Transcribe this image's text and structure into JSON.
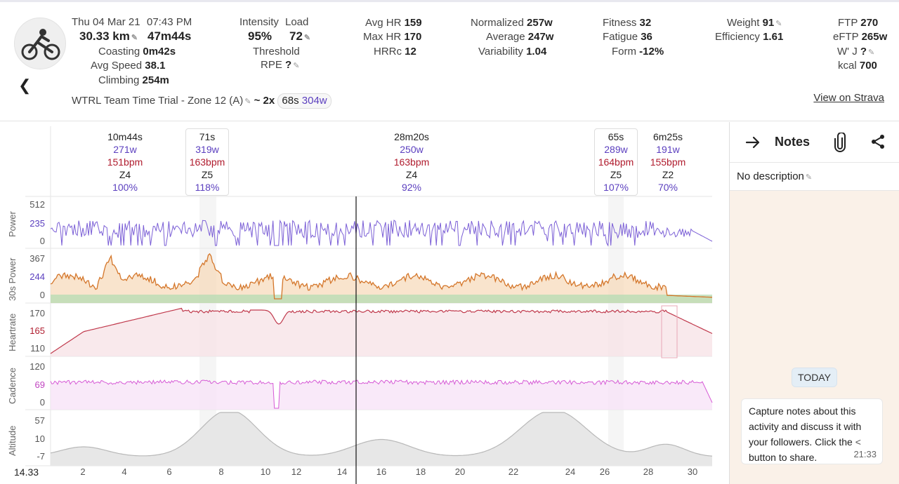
{
  "header": {
    "date": "Thu 04 Mar 21",
    "time": "07:43 PM",
    "distance": "30.33 km",
    "duration": "47m44s",
    "coasting_label": "Coasting",
    "coasting": "0m42s",
    "avg_speed_label": "Avg Speed",
    "avg_speed": "38.1",
    "climbing_label": "Climbing",
    "climbing": "254m",
    "title": "WTRL Team Time Trial - Zone 12 (A)",
    "intervals_prefix": "~ 2x",
    "interval_dur": "68s",
    "interval_watts": "304w",
    "intensity_label": "Intensity",
    "intensity": "95%",
    "load_label": "Load",
    "load": "72",
    "threshold_label": "Threshold",
    "rpe_label": "RPE",
    "rpe": "?",
    "avg_hr_label": "Avg HR",
    "avg_hr": "159",
    "max_hr_label": "Max HR",
    "max_hr": "170",
    "hrrc_label": "HRRc",
    "hrrc": "12",
    "normalized_label": "Normalized",
    "normalized": "257w",
    "average_label": "Average",
    "average": "247w",
    "variability_label": "Variability",
    "variability": "1.04",
    "fitness_label": "Fitness",
    "fitness": "32",
    "fatigue_label": "Fatigue",
    "fatigue": "36",
    "form_label": "Form",
    "form": "-12%",
    "weight_label": "Weight",
    "weight": "91",
    "efficiency_label": "Efficiency",
    "efficiency": "1.61",
    "ftp_label": "FTP",
    "ftp": "270",
    "eftp_label": "eFTP",
    "eftp": "265w",
    "wj_label": "W' J",
    "wj": "?",
    "kcal_label": "kcal",
    "kcal": "700",
    "strava_link": "View on Strava"
  },
  "segments": [
    {
      "dur": "10m44s",
      "w": "271w",
      "bpm": "151bpm",
      "zone": "Z4",
      "pct": "100%"
    },
    {
      "dur": "71s",
      "w": "319w",
      "bpm": "163bpm",
      "zone": "Z5",
      "pct": "118%"
    },
    {
      "dur": "28m20s",
      "w": "250w",
      "bpm": "163bpm",
      "zone": "Z4",
      "pct": "92%"
    },
    {
      "dur": "65s",
      "w": "289w",
      "bpm": "164bpm",
      "zone": "Z5",
      "pct": "107%"
    },
    {
      "dur": "6m25s",
      "w": "191w",
      "bpm": "155bpm",
      "zone": "Z2",
      "pct": "70%"
    }
  ],
  "charts": {
    "power": {
      "name": "Power",
      "ticks": [
        "512",
        "235",
        "0"
      ]
    },
    "power30": {
      "name": "30s Power",
      "ticks": [
        "367",
        "244",
        "0"
      ]
    },
    "heartrate": {
      "name": "Heartrate",
      "ticks": [
        "170",
        "165",
        "110"
      ]
    },
    "cadence": {
      "name": "Cadence",
      "ticks": [
        "120",
        "69",
        "0"
      ]
    },
    "altitude": {
      "name": "Altitude",
      "ticks": [
        "57",
        "10",
        "-7"
      ]
    },
    "cursor_value": "14.33",
    "x_ticks": [
      "2",
      "4",
      "6",
      "8",
      "10",
      "12",
      "14",
      "16",
      "18",
      "20",
      "22",
      "24",
      "26",
      "28",
      "30"
    ]
  },
  "notes": {
    "title": "Notes",
    "description": "No description",
    "today": "TODAY",
    "message": "Capture notes about this activity and discuss it with your followers. Click the",
    "message_end": "button to share.",
    "time": "21:33"
  },
  "colors": {
    "power": "#7b5fd6",
    "hr": "#c0394c",
    "cadence": "#d65ad6",
    "altitude": "#b8b8b8"
  }
}
